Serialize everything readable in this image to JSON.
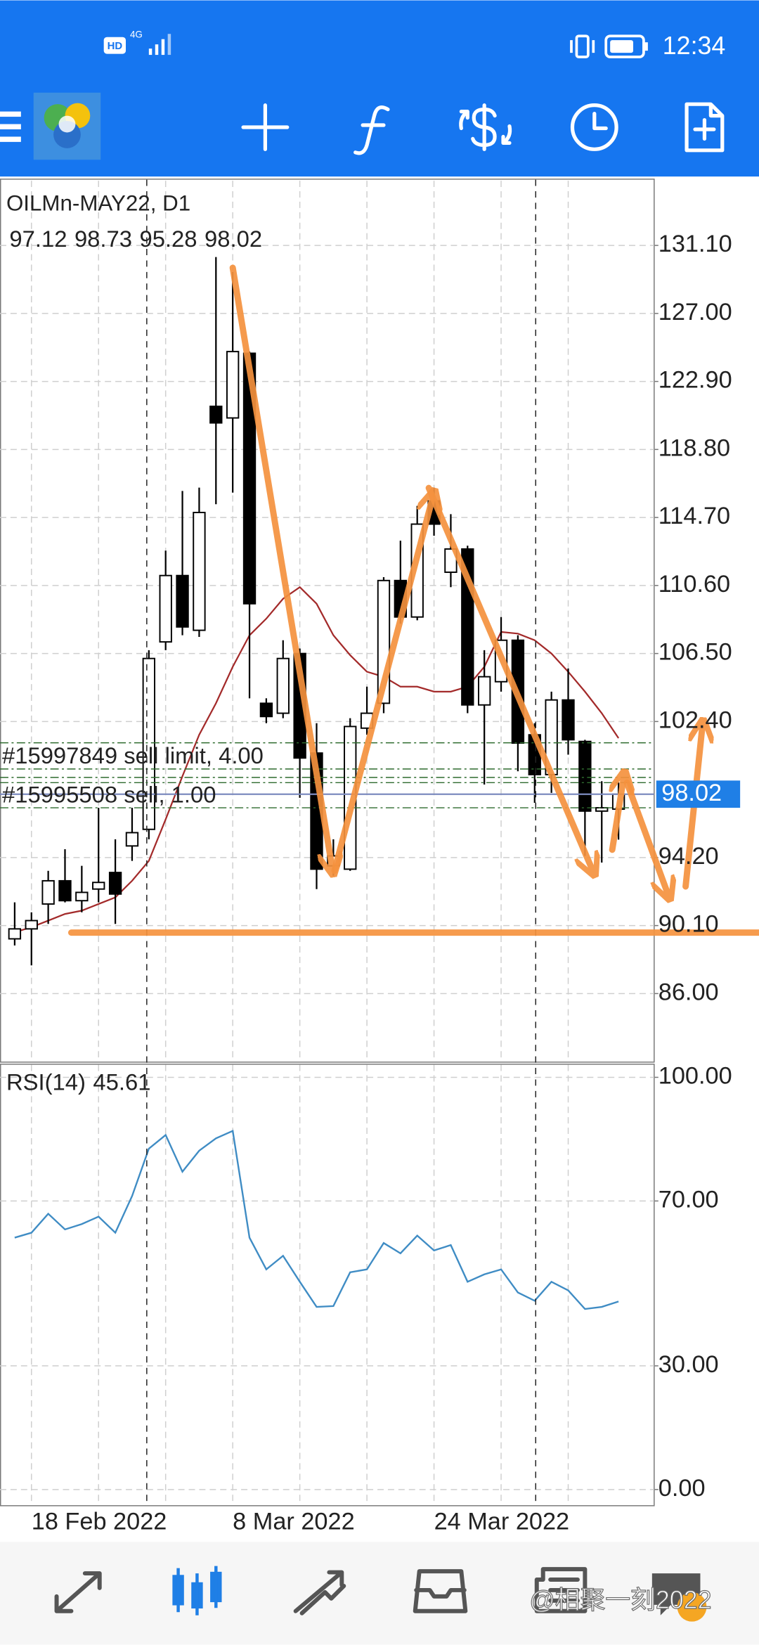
{
  "status_bar": {
    "hd": "HD",
    "network": "4G",
    "time": "12:34"
  },
  "watermark": "@相聚一刻2022",
  "chart_data": [
    {
      "type": "candlestick",
      "title": "OILMn-MAY22, D1",
      "categories": [
        null,
        "18 Feb 2022",
        null,
        null,
        null,
        null,
        null,
        null,
        null,
        null,
        null,
        null,
        null,
        "8 Mar 2022",
        null,
        null,
        null,
        null,
        null,
        null,
        null,
        null,
        null,
        null,
        null,
        "24 Mar 2022",
        null,
        null,
        null,
        null,
        null,
        null,
        null,
        null,
        null,
        null,
        null
      ],
      "open": [
        89.3,
        89.9,
        91.4,
        92.8,
        91.6,
        92.3,
        93.3,
        94.9,
        95.9,
        107.2,
        111.2,
        107.9,
        121.4,
        120.7,
        124.6,
        103.5,
        102.9,
        106.5,
        100.5,
        93.7,
        93.5,
        102.0,
        103.5,
        110.9,
        108.7,
        115.7,
        111.4,
        112.8,
        103.4,
        104.8,
        107.3,
        101.6,
        99.2,
        103.7,
        101.2,
        97.0,
        97.12
      ],
      "high": [
        91.5,
        90.9,
        93.4,
        94.7,
        93.7,
        97.2,
        95.3,
        97.2,
        106.7,
        112.7,
        116.3,
        116.5,
        130.4,
        129.5,
        124.7,
        103.8,
        107.3,
        106.8,
        102.3,
        95.3,
        102.6,
        104.5,
        111.1,
        113.3,
        115.4,
        116.5,
        114.9,
        113.0,
        106.7,
        108.7,
        107.6,
        102.3,
        104.2,
        105.6,
        101.3,
        98.8,
        98.73
      ],
      "low": [
        88.9,
        87.7,
        90.2,
        91.5,
        90.9,
        91.5,
        90.2,
        94.0,
        95.3,
        106.7,
        107.6,
        107.5,
        115.5,
        116.2,
        103.8,
        102.3,
        102.6,
        97.8,
        92.3,
        93.1,
        93.4,
        101.6,
        102.9,
        108.3,
        108.5,
        113.6,
        110.5,
        102.9,
        98.6,
        104.2,
        99.4,
        97.5,
        98.1,
        100.4,
        94.3,
        93.9,
        95.28
      ],
      "close": [
        89.9,
        90.4,
        92.8,
        91.6,
        92.1,
        92.7,
        92.0,
        95.7,
        106.2,
        111.2,
        108.1,
        115.0,
        120.4,
        124.7,
        109.5,
        102.7,
        106.2,
        100.2,
        93.5,
        94.3,
        102.1,
        102.9,
        110.9,
        108.7,
        114.3,
        114.3,
        112.8,
        103.4,
        105.1,
        107.3,
        101.1,
        99.2,
        103.7,
        101.3,
        97.0,
        97.2,
        98.02
      ],
      "up_color": "#ffffff",
      "down_color": "#000000",
      "outline_color": "#000000",
      "ma": {
        "color": "#a32a2a",
        "values": [
          89.7,
          90.0,
          90.4,
          90.8,
          91.0,
          91.4,
          91.8,
          92.8,
          94.0,
          96.5,
          99.1,
          101.6,
          103.5,
          105.7,
          107.6,
          108.6,
          109.8,
          110.5,
          109.5,
          107.6,
          106.4,
          105.4,
          105.1,
          104.5,
          104.5,
          104.2,
          104.2,
          104.5,
          105.7,
          107.8,
          107.7,
          107.3,
          106.5,
          105.4,
          104.2,
          102.9,
          101.4
        ]
      },
      "orders": [
        {
          "label": "#15997849 sell limit, 4.00",
          "price": 99.54,
          "color": "#2e6b2e"
        },
        {
          "label": "#15995508 sell, 1.00",
          "price": 97.2,
          "color": "#2e6b2e"
        }
      ],
      "price_line_color": "#7d8bbf",
      "price_label_color": "#1f7fe6",
      "ylim": [
        81.9,
        135.0
      ],
      "yticks": [
        {
          "value": 131.1,
          "label": "131.10"
        },
        {
          "value": 127,
          "label": "127.00"
        },
        {
          "value": 122.9,
          "label": "122.90"
        },
        {
          "value": 118.8,
          "label": "118.80"
        },
        {
          "value": 114.7,
          "label": "114.70"
        },
        {
          "value": 110.6,
          "label": "110.60"
        },
        {
          "value": 106.5,
          "label": "106.50"
        },
        {
          "value": 102.4,
          "label": "102.40"
        },
        {
          "value": 94.2,
          "label": "94.20"
        },
        {
          "value": 90.1,
          "label": "90.10"
        },
        {
          "value": 86,
          "label": "86.00"
        }
      ],
      "grid": true
    },
    {
      "type": "line",
      "title": "RSI(14)",
      "color": "#3f8cc4",
      "values": [
        61.1,
        62.3,
        66.9,
        63.1,
        64.4,
        66.2,
        62.3,
        71.2,
        82.7,
        86.0,
        77.1,
        82.2,
        85.2,
        87.0,
        61.1,
        53.4,
        56.7,
        50.4,
        44.3,
        44.5,
        52.7,
        53.4,
        59.8,
        57.3,
        61.6,
        58.0,
        59.3,
        50.4,
        52.2,
        53.4,
        47.8,
        45.8,
        50.4,
        48.3,
        43.8,
        44.3,
        45.61
      ],
      "ylim": [
        -3.8,
        103.05
      ],
      "yticks": [
        {
          "value": 100,
          "label": "100.00"
        },
        {
          "value": 70,
          "label": "70.00"
        },
        {
          "value": 30,
          "label": "30.00"
        },
        {
          "value": 0,
          "label": "0.00"
        }
      ],
      "grid": true
    }
  ]
}
